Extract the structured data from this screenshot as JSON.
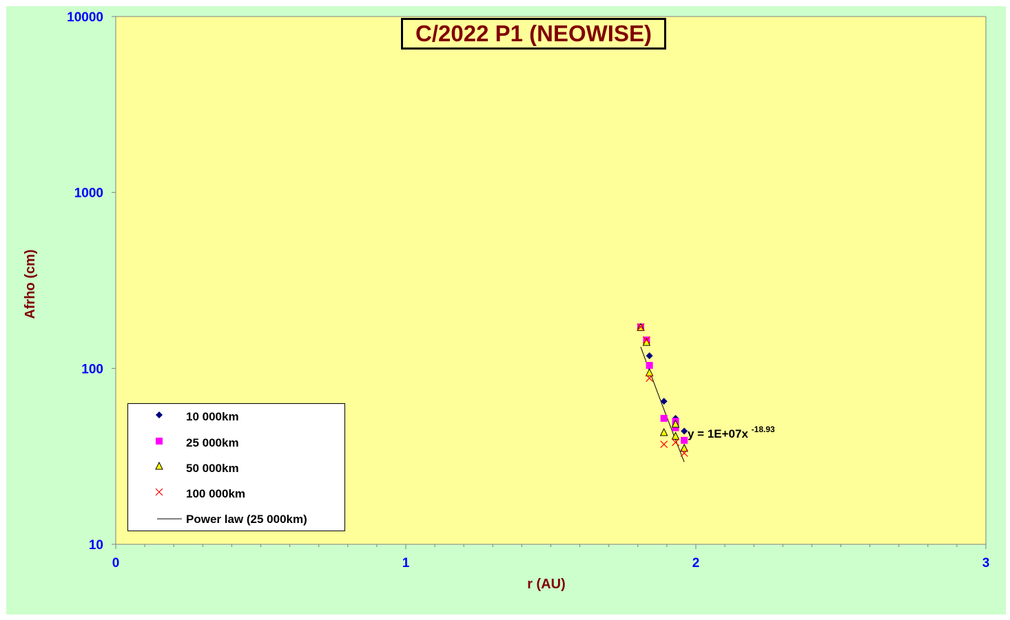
{
  "chart_data": {
    "type": "scatter",
    "title": "C/2022 P1 (NEOWISE)",
    "xlabel": "r (AU)",
    "ylabel": "Afrho (cm)",
    "xlim": [
      0,
      3
    ],
    "ylim": [
      10,
      10000
    ],
    "yscale": "log",
    "x_ticks": [
      "0",
      "1",
      "2",
      "3"
    ],
    "y_ticks": [
      "10",
      "100",
      "1000",
      "10000"
    ],
    "grid": false,
    "legend_position": "bottom-left",
    "series": [
      {
        "name": "10 000km",
        "marker": "diamond",
        "color": "#000080",
        "points": [
          [
            1.81,
            172
          ],
          [
            1.83,
            143
          ],
          [
            1.84,
            118
          ],
          [
            1.89,
            65
          ],
          [
            1.93,
            52
          ],
          [
            1.96,
            44
          ]
        ]
      },
      {
        "name": "25 000km",
        "marker": "square",
        "color": "#ff00ff",
        "points": [
          [
            1.81,
            172
          ],
          [
            1.83,
            145
          ],
          [
            1.84,
            104
          ],
          [
            1.89,
            52
          ],
          [
            1.93,
            50
          ],
          [
            1.93,
            46
          ],
          [
            1.96,
            39
          ]
        ]
      },
      {
        "name": "50 000km",
        "marker": "triangle",
        "color": "#ffff00",
        "points": [
          [
            1.81,
            170
          ],
          [
            1.83,
            140
          ],
          [
            1.84,
            94
          ],
          [
            1.89,
            43
          ],
          [
            1.93,
            48
          ],
          [
            1.93,
            41
          ],
          [
            1.96,
            35
          ]
        ]
      },
      {
        "name": "100 000km",
        "marker": "x",
        "color": "#ff0000",
        "points": [
          [
            1.81,
            172
          ],
          [
            1.83,
            145
          ],
          [
            1.84,
            88
          ],
          [
            1.89,
            37
          ],
          [
            1.93,
            38
          ],
          [
            1.96,
            33
          ]
        ]
      }
    ],
    "trendline": {
      "name": "Power law (25 000km)",
      "type": "power",
      "coefficient": 10000000,
      "exponent": -18.93,
      "x_range": [
        1.81,
        1.96
      ],
      "color": "#000000",
      "equation_text": "y = 1E+07x",
      "equation_exponent": "-18.93"
    },
    "colors": {
      "plot_background": "#ffff99",
      "chart_background": "#ccffcc",
      "title_color": "#800000",
      "axis_label_color": "#800000",
      "tick_label_color": "#0000ff"
    }
  }
}
